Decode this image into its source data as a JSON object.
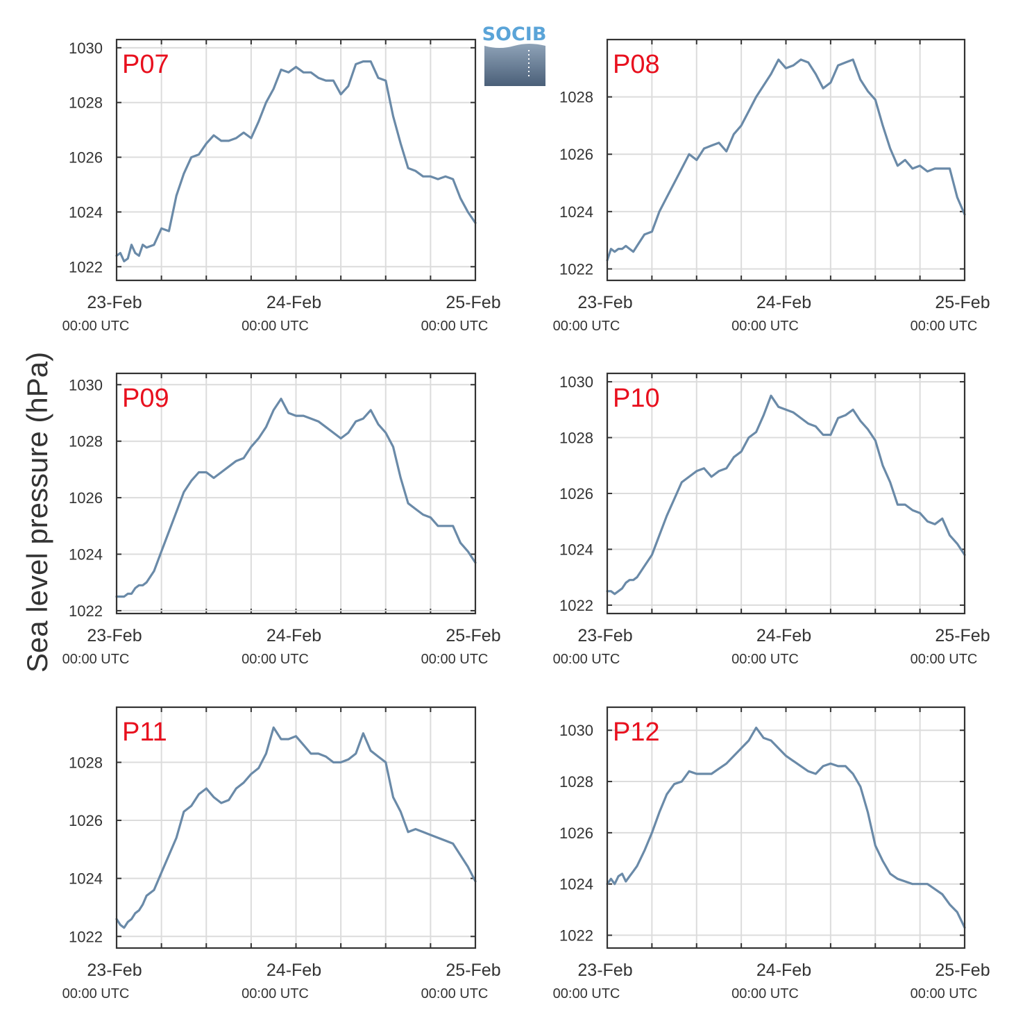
{
  "colors": {
    "line": "#6a8aa8",
    "grid": "#dcdcdc",
    "axis": "#333333",
    "panel_title": "#e8101e",
    "logo_text": "#5aa4d8"
  },
  "logo": {
    "text": "SOCIB"
  },
  "ylabel": "Sea level pressure (hPa)",
  "x_tick_labels": [
    {
      "date": "23-Feb",
      "time": "00:00 UTC"
    },
    {
      "date": "24-Feb",
      "time": "00:00 UTC"
    },
    {
      "date": "25-Feb",
      "time": "00:00 UTC"
    }
  ],
  "chart_data": [
    {
      "type": "line",
      "title": "P07",
      "x_unit": "hours since 23-Feb 00:00 UTC",
      "xlim": [
        0,
        48
      ],
      "ylim": [
        1021.5,
        1030.3
      ],
      "yticks": [
        1022,
        1024,
        1026,
        1028,
        1030
      ],
      "grid": true,
      "x": [
        0,
        0.5,
        1,
        1.5,
        2,
        2.5,
        3,
        3.5,
        4,
        5,
        6,
        7,
        8,
        9,
        10,
        11,
        12,
        13,
        14,
        15,
        16,
        17,
        18,
        19,
        20,
        21,
        22,
        23,
        24,
        25,
        26,
        27,
        28,
        29,
        30,
        31,
        32,
        33,
        34,
        35,
        36,
        37,
        38,
        39,
        40,
        41,
        42,
        43,
        44,
        45,
        46,
        47,
        48
      ],
      "y": [
        1022.4,
        1022.5,
        1022.2,
        1022.3,
        1022.8,
        1022.5,
        1022.4,
        1022.8,
        1022.7,
        1022.8,
        1023.4,
        1023.3,
        1024.6,
        1025.4,
        1026.0,
        1026.1,
        1026.5,
        1026.8,
        1026.6,
        1026.6,
        1026.7,
        1026.9,
        1026.7,
        1027.3,
        1028.0,
        1028.5,
        1029.2,
        1029.1,
        1029.3,
        1029.1,
        1029.1,
        1028.9,
        1028.8,
        1028.8,
        1028.3,
        1028.6,
        1029.4,
        1029.5,
        1029.5,
        1028.9,
        1028.8,
        1027.5,
        1026.5,
        1025.6,
        1025.5,
        1025.3,
        1025.3,
        1025.2,
        1025.3,
        1025.2,
        1024.5,
        1024.0,
        1023.6
      ]
    },
    {
      "type": "line",
      "title": "P08",
      "x_unit": "hours since 23-Feb 00:00 UTC",
      "xlim": [
        0,
        48
      ],
      "ylim": [
        1021.6,
        1030.0
      ],
      "yticks": [
        1022,
        1024,
        1026,
        1028
      ],
      "grid": true,
      "x": [
        0,
        0.5,
        1,
        1.5,
        2,
        2.5,
        3,
        3.5,
        4,
        5,
        6,
        7,
        8,
        9,
        10,
        11,
        12,
        13,
        14,
        15,
        16,
        17,
        18,
        19,
        20,
        21,
        22,
        23,
        24,
        25,
        26,
        27,
        28,
        29,
        30,
        31,
        32,
        33,
        34,
        35,
        36,
        37,
        38,
        39,
        40,
        41,
        42,
        43,
        44,
        45,
        46,
        47,
        48
      ],
      "y": [
        1022.3,
        1022.7,
        1022.6,
        1022.7,
        1022.7,
        1022.8,
        1022.7,
        1022.6,
        1022.8,
        1023.2,
        1023.3,
        1024.0,
        1024.5,
        1025.0,
        1025.5,
        1026.0,
        1025.8,
        1026.2,
        1026.3,
        1026.4,
        1026.1,
        1026.7,
        1027.0,
        1027.5,
        1028.0,
        1028.4,
        1028.8,
        1029.3,
        1029.0,
        1029.1,
        1029.3,
        1029.2,
        1028.8,
        1028.3,
        1028.5,
        1029.1,
        1029.2,
        1029.3,
        1028.6,
        1028.2,
        1027.9,
        1027.0,
        1026.2,
        1025.6,
        1025.8,
        1025.5,
        1025.6,
        1025.4,
        1025.5,
        1025.5,
        1025.5,
        1024.5,
        1023.9
      ]
    },
    {
      "type": "line",
      "title": "P09",
      "x_unit": "hours since 23-Feb 00:00 UTC",
      "xlim": [
        0,
        48
      ],
      "ylim": [
        1021.9,
        1030.4
      ],
      "yticks": [
        1022,
        1024,
        1026,
        1028,
        1030
      ],
      "grid": true,
      "x": [
        0,
        0.5,
        1,
        1.5,
        2,
        2.5,
        3,
        3.5,
        4,
        5,
        6,
        7,
        8,
        9,
        10,
        11,
        12,
        13,
        14,
        15,
        16,
        17,
        18,
        19,
        20,
        21,
        22,
        23,
        24,
        25,
        26,
        27,
        28,
        29,
        30,
        31,
        32,
        33,
        34,
        35,
        36,
        37,
        38,
        39,
        40,
        41,
        42,
        43,
        44,
        45,
        46,
        47,
        48
      ],
      "y": [
        1022.5,
        1022.5,
        1022.5,
        1022.6,
        1022.6,
        1022.8,
        1022.9,
        1022.9,
        1023.0,
        1023.4,
        1024.1,
        1024.8,
        1025.5,
        1026.2,
        1026.6,
        1026.9,
        1026.9,
        1026.7,
        1026.9,
        1027.1,
        1027.3,
        1027.4,
        1027.8,
        1028.1,
        1028.5,
        1029.1,
        1029.5,
        1029.0,
        1028.9,
        1028.9,
        1028.8,
        1028.7,
        1028.5,
        1028.3,
        1028.1,
        1028.3,
        1028.7,
        1028.8,
        1029.1,
        1028.6,
        1028.3,
        1027.8,
        1026.7,
        1025.8,
        1025.6,
        1025.4,
        1025.3,
        1025.0,
        1025.0,
        1025.0,
        1024.4,
        1024.1,
        1023.7
      ]
    },
    {
      "type": "line",
      "title": "P10",
      "x_unit": "hours since 23-Feb 00:00 UTC",
      "xlim": [
        0,
        48
      ],
      "ylim": [
        1021.7,
        1030.3
      ],
      "yticks": [
        1022,
        1024,
        1026,
        1028,
        1030
      ],
      "grid": true,
      "x": [
        0,
        0.5,
        1,
        1.5,
        2,
        2.5,
        3,
        3.5,
        4,
        5,
        6,
        7,
        8,
        9,
        10,
        11,
        12,
        13,
        14,
        15,
        16,
        17,
        18,
        19,
        20,
        21,
        22,
        23,
        24,
        25,
        26,
        27,
        28,
        29,
        30,
        31,
        32,
        33,
        34,
        35,
        36,
        37,
        38,
        39,
        40,
        41,
        42,
        43,
        44,
        45,
        46,
        47,
        48
      ],
      "y": [
        1022.5,
        1022.5,
        1022.4,
        1022.5,
        1022.6,
        1022.8,
        1022.9,
        1022.9,
        1023.0,
        1023.4,
        1023.8,
        1024.5,
        1025.2,
        1025.8,
        1026.4,
        1026.6,
        1026.8,
        1026.9,
        1026.6,
        1026.8,
        1026.9,
        1027.3,
        1027.5,
        1028.0,
        1028.2,
        1028.8,
        1029.5,
        1029.1,
        1029.0,
        1028.9,
        1028.7,
        1028.5,
        1028.4,
        1028.1,
        1028.1,
        1028.7,
        1028.8,
        1029.0,
        1028.6,
        1028.3,
        1027.9,
        1027.0,
        1026.4,
        1025.6,
        1025.6,
        1025.4,
        1025.3,
        1025.0,
        1024.9,
        1025.1,
        1024.5,
        1024.2,
        1023.8
      ]
    },
    {
      "type": "line",
      "title": "P11",
      "x_unit": "hours since 23-Feb 00:00 UTC",
      "xlim": [
        0,
        48
      ],
      "ylim": [
        1021.6,
        1029.9
      ],
      "yticks": [
        1022,
        1024,
        1026,
        1028
      ],
      "grid": true,
      "x": [
        0,
        0.5,
        1,
        1.5,
        2,
        2.5,
        3,
        3.5,
        4,
        5,
        6,
        7,
        8,
        9,
        10,
        11,
        12,
        13,
        14,
        15,
        16,
        17,
        18,
        19,
        20,
        21,
        22,
        23,
        24,
        25,
        26,
        27,
        28,
        29,
        30,
        31,
        32,
        33,
        34,
        35,
        36,
        37,
        38,
        39,
        40,
        41,
        42,
        43,
        44,
        45,
        46,
        47,
        48
      ],
      "y": [
        1022.6,
        1022.4,
        1022.3,
        1022.5,
        1022.6,
        1022.8,
        1022.9,
        1023.1,
        1023.4,
        1023.6,
        1024.2,
        1024.8,
        1025.4,
        1026.3,
        1026.5,
        1026.9,
        1027.1,
        1026.8,
        1026.6,
        1026.7,
        1027.1,
        1027.3,
        1027.6,
        1027.8,
        1028.3,
        1029.2,
        1028.8,
        1028.8,
        1028.9,
        1028.6,
        1028.3,
        1028.3,
        1028.2,
        1028.0,
        1028.0,
        1028.1,
        1028.3,
        1029.0,
        1028.4,
        1028.2,
        1028.0,
        1026.8,
        1026.3,
        1025.6,
        1025.7,
        1025.6,
        1025.5,
        1025.4,
        1025.3,
        1025.2,
        1024.8,
        1024.4,
        1023.9
      ]
    },
    {
      "type": "line",
      "title": "P12",
      "x_unit": "hours since 23-Feb 00:00 UTC",
      "xlim": [
        0,
        48
      ],
      "ylim": [
        1021.5,
        1030.9
      ],
      "yticks": [
        1022,
        1024,
        1026,
        1028,
        1030
      ],
      "grid": true,
      "x": [
        0,
        0.5,
        1,
        1.5,
        2,
        2.5,
        3,
        3.5,
        4,
        5,
        6,
        7,
        8,
        9,
        10,
        11,
        12,
        13,
        14,
        15,
        16,
        17,
        18,
        19,
        20,
        21,
        22,
        23,
        24,
        25,
        26,
        27,
        28,
        29,
        30,
        31,
        32,
        33,
        34,
        35,
        36,
        37,
        38,
        39,
        40,
        41,
        42,
        43,
        44,
        45,
        46,
        47,
        48
      ],
      "y": [
        1024.0,
        1024.2,
        1024.0,
        1024.3,
        1024.4,
        1024.1,
        1024.3,
        1024.5,
        1024.7,
        1025.3,
        1026.0,
        1026.8,
        1027.5,
        1027.9,
        1028.0,
        1028.4,
        1028.3,
        1028.3,
        1028.3,
        1028.5,
        1028.7,
        1029.0,
        1029.3,
        1029.6,
        1030.1,
        1029.7,
        1029.6,
        1029.3,
        1029.0,
        1028.8,
        1028.6,
        1028.4,
        1028.3,
        1028.6,
        1028.7,
        1028.6,
        1028.6,
        1028.3,
        1027.8,
        1026.8,
        1025.5,
        1024.9,
        1024.4,
        1024.2,
        1024.1,
        1024.0,
        1024.0,
        1024.0,
        1023.8,
        1023.6,
        1023.2,
        1022.9,
        1022.3
      ]
    }
  ]
}
